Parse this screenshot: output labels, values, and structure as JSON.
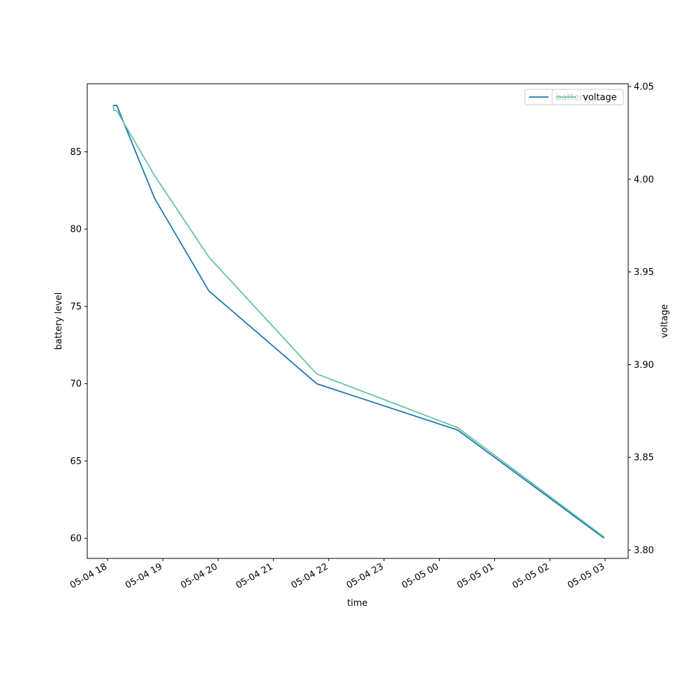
{
  "chart_data": {
    "type": "line",
    "title": "",
    "xlabel": "time",
    "ylabel_left": "battery level",
    "ylabel_right": "voltage",
    "x_tick_labels": [
      "05-04 18",
      "05-04 19",
      "05-04 20",
      "05-04 21",
      "05-04 22",
      "05-04 23",
      "05-05 00",
      "05-05 01",
      "05-05 02",
      "05-05 03"
    ],
    "x_ticks_iso": [
      "2023-05-04T18:00",
      "2023-05-04T19:00",
      "2023-05-04T20:00",
      "2023-05-04T21:00",
      "2023-05-04T22:00",
      "2023-05-04T23:00",
      "2023-05-05T00:00",
      "2023-05-05T01:00",
      "2023-05-05T02:00",
      "2023-05-05T03:00"
    ],
    "xlim": [
      "2023-05-04T17:38",
      "2023-05-05T03:25"
    ],
    "ylim_left": [
      58.7,
      89.4
    ],
    "y_ticks_left": [
      60,
      65,
      70,
      75,
      80,
      85
    ],
    "ylim_right": [
      3.7955,
      4.0515
    ],
    "y_ticks_right": [
      "3.80",
      "3.85",
      "3.90",
      "3.95",
      "4.00",
      "4.05"
    ],
    "legend_position": "top-right",
    "series": [
      {
        "name": "battery",
        "axis": "left",
        "color": "#1f77b4",
        "x": [
          "2023-05-04T18:06",
          "2023-05-04T18:10",
          "2023-05-04T18:51",
          "2023-05-04T19:50",
          "2023-05-04T21:47",
          "2023-05-05T00:20",
          "2023-05-05T02:59"
        ],
        "y": [
          88,
          88,
          82,
          76,
          70,
          67,
          60
        ]
      },
      {
        "name": "voltage",
        "axis": "right",
        "color": "#66c2a5",
        "x": [
          "2023-05-04T18:06",
          "2023-05-04T18:07",
          "2023-05-04T18:10",
          "2023-05-04T18:51",
          "2023-05-04T19:50",
          "2023-05-04T21:47",
          "2023-05-05T00:20",
          "2023-05-05T02:59"
        ],
        "y": [
          4.04,
          4.037,
          4.037,
          4.002,
          3.958,
          3.895,
          3.866,
          3.807
        ]
      }
    ]
  }
}
